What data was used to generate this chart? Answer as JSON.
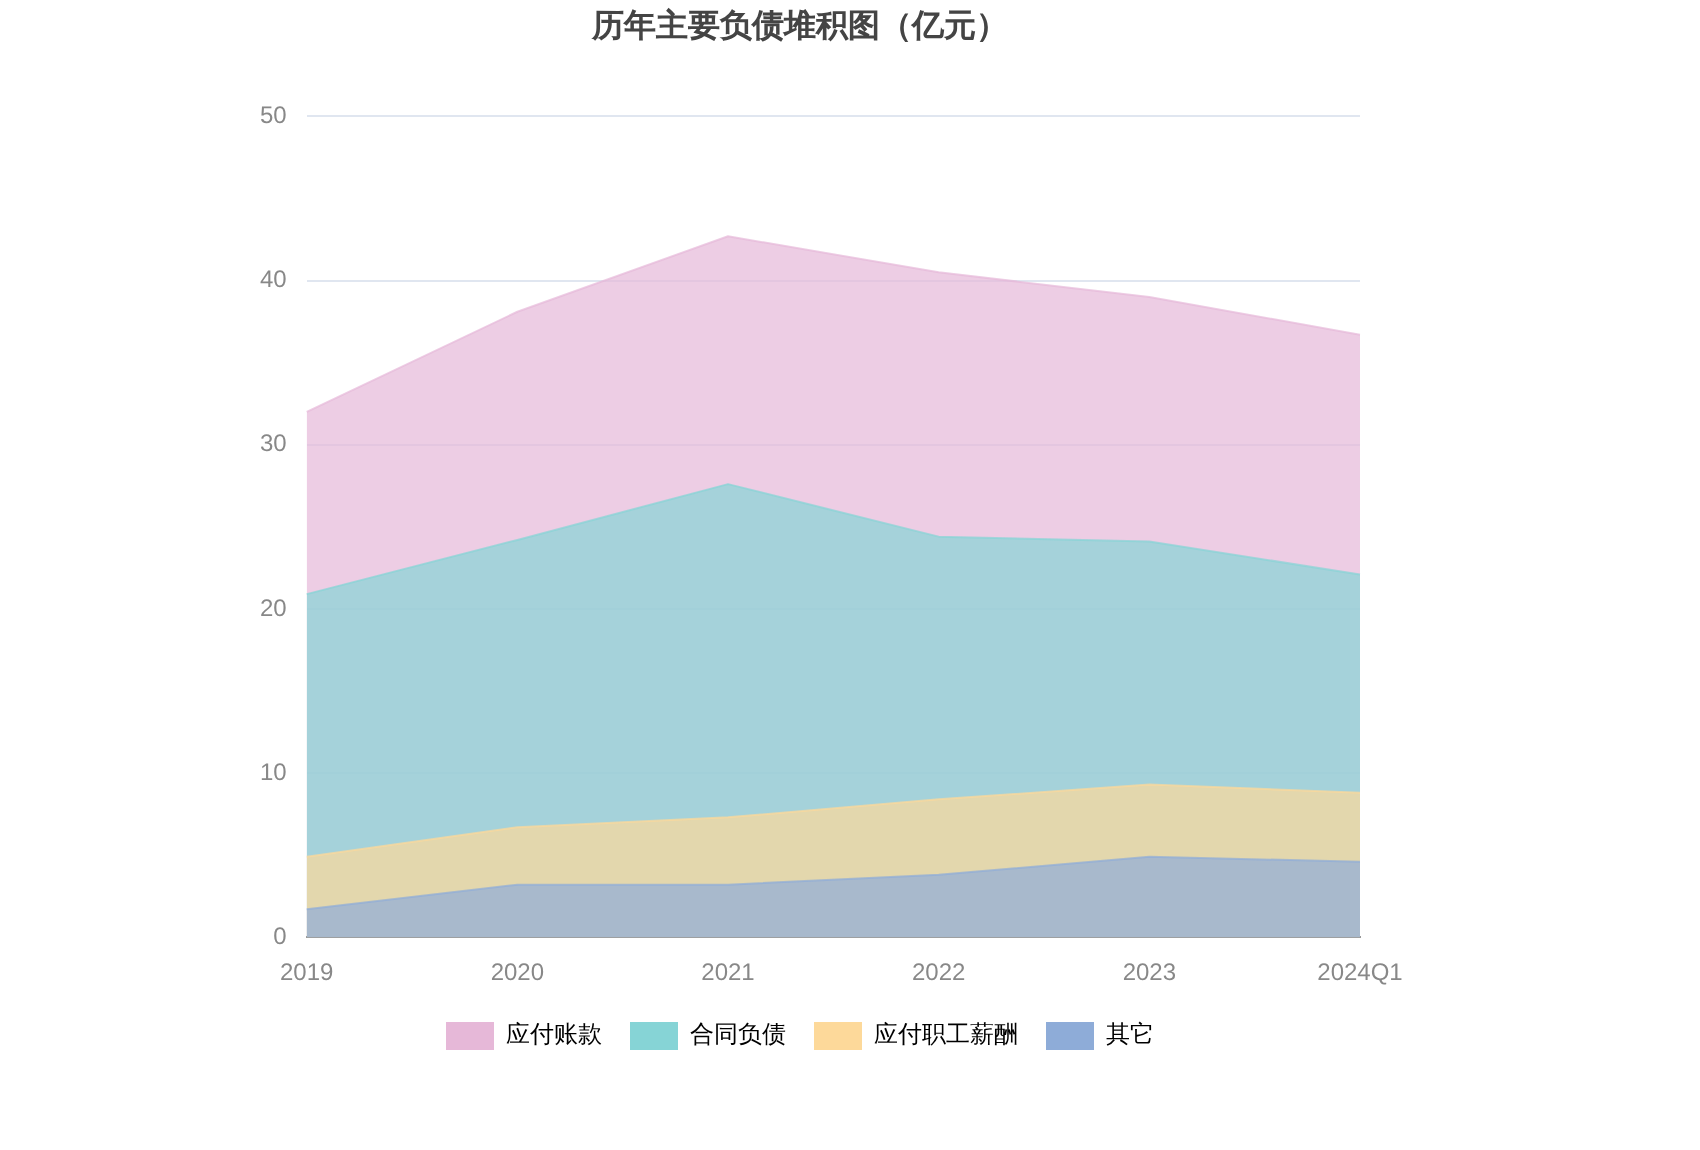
{
  "chart_data": {
    "type": "area",
    "title": "历年主要负债堆积图（亿元）",
    "stacked": true,
    "categories": [
      "2019",
      "2020",
      "2021",
      "2022",
      "2023",
      "2024Q1"
    ],
    "series": [
      {
        "name": "其它",
        "color": "#8eacd8",
        "values": [
          1.7,
          3.2,
          3.2,
          3.8,
          4.9,
          4.6
        ]
      },
      {
        "name": "应付职工薪酬",
        "color": "#fdd99a",
        "values": [
          3.2,
          3.5,
          4.1,
          4.6,
          4.4,
          4.2
        ]
      },
      {
        "name": "合同负债",
        "color": "#86d4d6",
        "values": [
          16.0,
          17.5,
          20.3,
          16.0,
          14.8,
          13.3
        ]
      },
      {
        "name": "应付账款",
        "color": "#e6b8d8",
        "values": [
          11.1,
          13.9,
          15.1,
          16.1,
          14.9,
          14.6
        ]
      }
    ],
    "ylim": [
      0,
      50
    ],
    "yticks": [
      0,
      10,
      20,
      30,
      40,
      50
    ],
    "grid": "y",
    "legend": "bottom",
    "marker": "none"
  }
}
